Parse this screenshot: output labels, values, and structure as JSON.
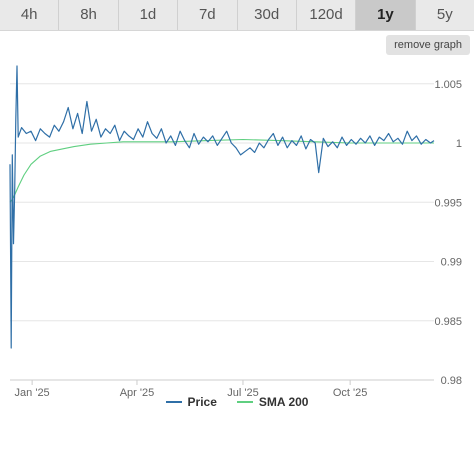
{
  "tabs": [
    {
      "label": "4h",
      "active": false
    },
    {
      "label": "8h",
      "active": false
    },
    {
      "label": "1d",
      "active": false
    },
    {
      "label": "7d",
      "active": false
    },
    {
      "label": "30d",
      "active": false
    },
    {
      "label": "120d",
      "active": false
    },
    {
      "label": "1y",
      "active": true
    },
    {
      "label": "5y",
      "active": false
    }
  ],
  "remove_graph_label": "remove graph",
  "chart_data": {
    "type": "line",
    "title": "",
    "xlabel": "",
    "ylabel": "",
    "ylim": [
      0.98,
      1.0065
    ],
    "xlim": [
      "2024-12-13",
      "2025-12-12"
    ],
    "y_ticks": [
      0.98,
      0.985,
      0.99,
      0.995,
      1,
      1.005
    ],
    "y_tick_labels": [
      "0.98",
      "0.985",
      "0.99",
      "0.995",
      "1",
      "1.005"
    ],
    "x_ticks": [
      "2025-01-01",
      "2025-04-01",
      "2025-07-01",
      "2025-10-01"
    ],
    "x_tick_labels": [
      "Jan '25",
      "Apr '25",
      "Jul '25",
      "Oct '25"
    ],
    "grid": true,
    "legend_position": "bottom",
    "series": [
      {
        "name": "Price",
        "color": "#2f6fa7",
        "points": [
          [
            "2024-12-13",
            0.9982
          ],
          [
            "2024-12-14",
            0.9827
          ],
          [
            "2024-12-15",
            0.999
          ],
          [
            "2024-12-16",
            0.9915
          ],
          [
            "2024-12-17",
            0.996
          ],
          [
            "2024-12-18",
            1.002
          ],
          [
            "2024-12-19",
            1.0065
          ],
          [
            "2024-12-20",
            1.0005
          ],
          [
            "2024-12-23",
            1.0013
          ],
          [
            "2024-12-27",
            1.0008
          ],
          [
            "2024-12-31",
            1.001
          ],
          [
            "2025-01-04",
            1.0002
          ],
          [
            "2025-01-08",
            1.0012
          ],
          [
            "2025-01-12",
            1.0008
          ],
          [
            "2025-01-16",
            1.0005
          ],
          [
            "2025-01-20",
            1.0015
          ],
          [
            "2025-01-24",
            1.001
          ],
          [
            "2025-01-28",
            1.0018
          ],
          [
            "2025-02-01",
            1.003
          ],
          [
            "2025-02-05",
            1.0012
          ],
          [
            "2025-02-09",
            1.0025
          ],
          [
            "2025-02-13",
            1.0008
          ],
          [
            "2025-02-17",
            1.0035
          ],
          [
            "2025-02-21",
            1.001
          ],
          [
            "2025-02-25",
            1.002
          ],
          [
            "2025-03-01",
            1.0005
          ],
          [
            "2025-03-05",
            1.0012
          ],
          [
            "2025-03-09",
            1.0008
          ],
          [
            "2025-03-13",
            1.0015
          ],
          [
            "2025-03-17",
            1.0002
          ],
          [
            "2025-03-21",
            1.001
          ],
          [
            "2025-03-25",
            1.0006
          ],
          [
            "2025-03-29",
            1.0003
          ],
          [
            "2025-04-02",
            1.0012
          ],
          [
            "2025-04-06",
            1.0005
          ],
          [
            "2025-04-10",
            1.0018
          ],
          [
            "2025-04-14",
            1.0008
          ],
          [
            "2025-04-18",
            1.0004
          ],
          [
            "2025-04-22",
            1.0012
          ],
          [
            "2025-04-26",
            1.0
          ],
          [
            "2025-04-30",
            1.0006
          ],
          [
            "2025-05-04",
            0.9998
          ],
          [
            "2025-05-08",
            1.001
          ],
          [
            "2025-05-12",
            1.0002
          ],
          [
            "2025-05-16",
            0.9996
          ],
          [
            "2025-05-20",
            1.0008
          ],
          [
            "2025-05-24",
            0.9999
          ],
          [
            "2025-05-28",
            1.0005
          ],
          [
            "2025-06-01",
            1.0001
          ],
          [
            "2025-06-05",
            1.0006
          ],
          [
            "2025-06-09",
            0.9998
          ],
          [
            "2025-06-13",
            1.0004
          ],
          [
            "2025-06-17",
            1.001
          ],
          [
            "2025-06-21",
            1.0
          ],
          [
            "2025-06-25",
            0.9996
          ],
          [
            "2025-06-29",
            0.999
          ],
          [
            "2025-07-03",
            0.9993
          ],
          [
            "2025-07-07",
            0.9996
          ],
          [
            "2025-07-11",
            0.9992
          ],
          [
            "2025-07-15",
            1.0
          ],
          [
            "2025-07-19",
            0.9996
          ],
          [
            "2025-07-23",
            1.0003
          ],
          [
            "2025-07-27",
            1.0008
          ],
          [
            "2025-07-31",
            0.9998
          ],
          [
            "2025-08-04",
            1.0005
          ],
          [
            "2025-08-08",
            0.9996
          ],
          [
            "2025-08-12",
            1.0002
          ],
          [
            "2025-08-16",
            0.9998
          ],
          [
            "2025-08-20",
            1.0006
          ],
          [
            "2025-08-24",
            0.9995
          ],
          [
            "2025-08-28",
            1.0003
          ],
          [
            "2025-09-01",
            1.0
          ],
          [
            "2025-09-04",
            0.9975
          ],
          [
            "2025-09-08",
            1.0004
          ],
          [
            "2025-09-12",
            0.9997
          ],
          [
            "2025-09-16",
            1.0001
          ],
          [
            "2025-09-20",
            0.9996
          ],
          [
            "2025-09-24",
            1.0005
          ],
          [
            "2025-09-28",
            0.9998
          ],
          [
            "2025-10-02",
            1.0003
          ],
          [
            "2025-10-06",
            0.9999
          ],
          [
            "2025-10-10",
            1.0004
          ],
          [
            "2025-10-14",
            1.0
          ],
          [
            "2025-10-18",
            1.0006
          ],
          [
            "2025-10-22",
            0.9998
          ],
          [
            "2025-10-26",
            1.0005
          ],
          [
            "2025-10-30",
            1.0002
          ],
          [
            "2025-11-03",
            1.0008
          ],
          [
            "2025-11-07",
            1.0001
          ],
          [
            "2025-11-11",
            1.0004
          ],
          [
            "2025-11-15",
            0.9999
          ],
          [
            "2025-11-19",
            1.001
          ],
          [
            "2025-11-23",
            1.0002
          ],
          [
            "2025-11-27",
            1.0006
          ],
          [
            "2025-12-01",
            0.9999
          ],
          [
            "2025-12-05",
            1.0003
          ],
          [
            "2025-12-09",
            1.0
          ],
          [
            "2025-12-12",
            1.0002
          ]
        ]
      },
      {
        "name": "SMA 200",
        "color": "#5fcf80",
        "points": [
          [
            "2024-12-13",
            0.995
          ],
          [
            "2024-12-16",
            0.9954
          ],
          [
            "2024-12-20",
            0.9963
          ],
          [
            "2024-12-25",
            0.9973
          ],
          [
            "2024-12-31",
            0.9982
          ],
          [
            "2025-01-08",
            0.9989
          ],
          [
            "2025-01-17",
            0.9993
          ],
          [
            "2025-01-27",
            0.9995
          ],
          [
            "2025-02-06",
            0.9997
          ],
          [
            "2025-02-20",
            0.9999
          ],
          [
            "2025-03-06",
            1.0
          ],
          [
            "2025-03-20",
            1.0001
          ],
          [
            "2025-04-10",
            1.0001
          ],
          [
            "2025-05-01",
            1.0001
          ],
          [
            "2025-06-01",
            1.0002
          ],
          [
            "2025-07-01",
            1.0003
          ],
          [
            "2025-08-01",
            1.0002
          ],
          [
            "2025-09-01",
            1.0001
          ],
          [
            "2025-10-01",
            1.0
          ],
          [
            "2025-11-01",
            1.0
          ],
          [
            "2025-12-12",
            1.0
          ]
        ]
      }
    ]
  }
}
